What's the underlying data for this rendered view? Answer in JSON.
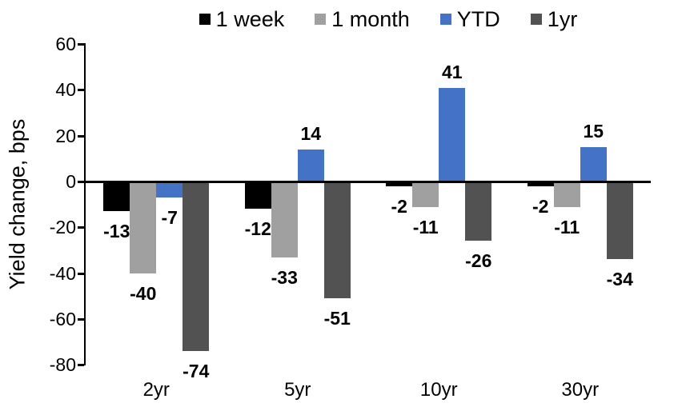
{
  "chart_data": {
    "type": "bar",
    "title": "",
    "xlabel": "",
    "ylabel": "Yield change, bps",
    "categories": [
      "2yr",
      "5yr",
      "10yr",
      "30yr"
    ],
    "series": [
      {
        "name": "1 week",
        "color": "#000000",
        "values": [
          -13,
          -12,
          -2,
          -2
        ]
      },
      {
        "name": "1 month",
        "color": "#A0A0A0",
        "values": [
          -40,
          -33,
          -11,
          -11
        ]
      },
      {
        "name": "YTD",
        "color": "#4472C4",
        "values": [
          -7,
          14,
          41,
          15
        ]
      },
      {
        "name": "1yr",
        "color": "#525252",
        "values": [
          -74,
          -51,
          -26,
          -34
        ]
      }
    ],
    "ylim": [
      -80,
      60
    ],
    "ytick_step": 20,
    "grid": false,
    "legend_position": "top",
    "data_labels": "outside-end",
    "axis_color": "#000000",
    "background_color": "#ffffff"
  }
}
